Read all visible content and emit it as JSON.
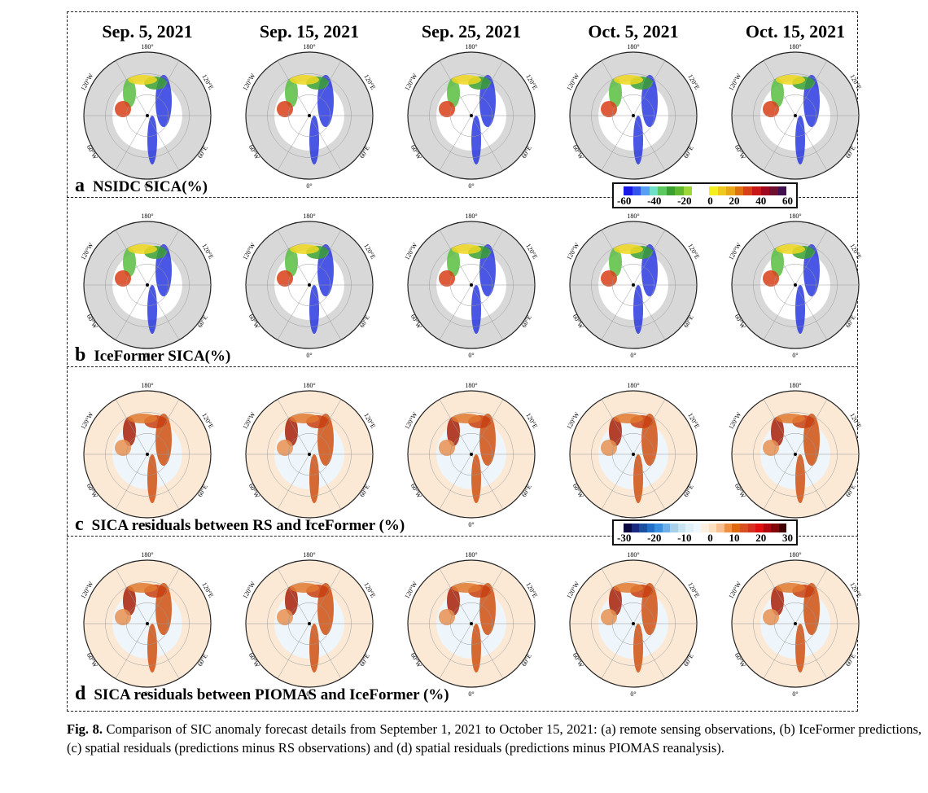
{
  "figure": {
    "column_titles": [
      "Sep. 5, 2021",
      "Sep. 15, 2021",
      "Sep. 25, 2021",
      "Oct. 5, 2021",
      "Oct. 15, 2021"
    ],
    "map_labels": {
      "top": "180°",
      "bottom": "0°",
      "left_upper": "120°W",
      "left_lower": "60°W",
      "right_upper": "120°E",
      "right_lower": "60°E"
    },
    "panels": [
      {
        "letter": "a",
        "title": "NSIDC SICA(%)",
        "scheme": "sica"
      },
      {
        "letter": "b",
        "title": "IceFormer SICA(%)",
        "scheme": "sica"
      },
      {
        "letter": "c",
        "title": "SICA residuals between RS and IceFormer (%)",
        "scheme": "resid"
      },
      {
        "letter": "d",
        "title": "SICA residuals between PIOMAS and IceFormer (%)",
        "scheme": "resid"
      }
    ],
    "colorbars": {
      "sica": {
        "ticks": [
          "-60",
          "-40",
          "-20",
          "0",
          "20",
          "40",
          "60"
        ],
        "colors": [
          "#1a1ae6",
          "#3355ee",
          "#55a0f0",
          "#6fe0c8",
          "#5cc860",
          "#3aa030",
          "#60b830",
          "#9ed838",
          "#ffffff",
          "#ffffff",
          "#f4f020",
          "#f0c820",
          "#e8a818",
          "#e07010",
          "#d84018",
          "#c81818",
          "#a00820",
          "#701030",
          "#401050"
        ]
      },
      "resid": {
        "ticks": [
          "-30",
          "-20",
          "-10",
          "0",
          "10",
          "20",
          "30"
        ],
        "colors": [
          "#0a0a40",
          "#1a2a80",
          "#1a50a0",
          "#2070c8",
          "#3a90e0",
          "#70b0e8",
          "#a8d0e8",
          "#c8e4f0",
          "#e0f0f8",
          "#f0f8ff",
          "#fdf0e0",
          "#fce0c0",
          "#f8c090",
          "#f09040",
          "#e06810",
          "#d85020",
          "#d83020",
          "#e01010",
          "#b00810",
          "#800808",
          "#400000"
        ]
      }
    }
  },
  "caption": {
    "label": "Fig. 8.",
    "text": " Comparison of SIC anomaly forecast details from September 1, 2021 to October 15, 2021: (a) remote sensing observations, (b) IceFormer predictions, (c) spatial residuals (predictions minus RS observations) and (d) spatial residuals (predictions minus PIOMAS reanalysis)."
  }
}
